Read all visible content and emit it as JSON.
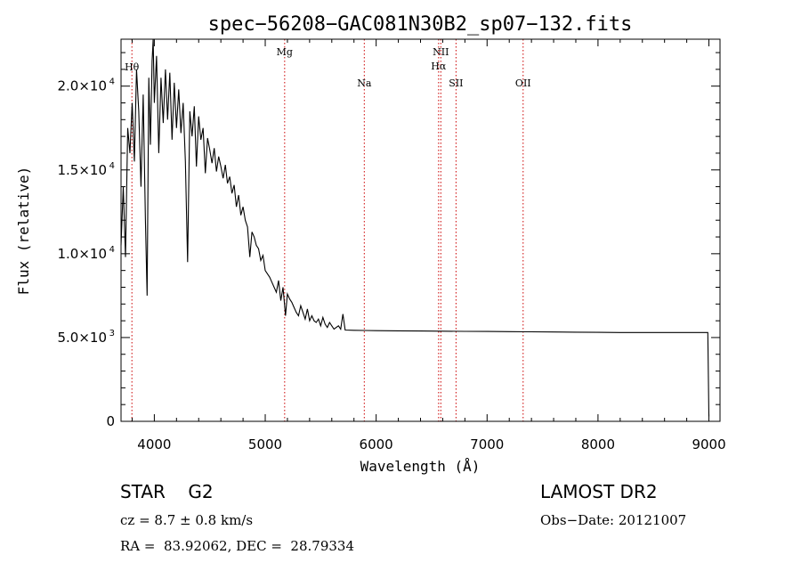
{
  "chart_data": {
    "type": "line",
    "title": "spec−56208−GAC081N30B2_sp07−132.fits",
    "xlabel": "Wavelength (Å)",
    "ylabel": "Flux (relative)",
    "xlim": [
      3700,
      9100
    ],
    "ylim": [
      0,
      22800
    ],
    "x_ticks": [
      4000,
      5000,
      6000,
      7000,
      8000,
      9000
    ],
    "x_tick_labels": [
      "4000",
      "5000",
      "6000",
      "7000",
      "8000",
      "9000"
    ],
    "y_ticks": [
      0,
      5000,
      10000,
      15000,
      20000
    ],
    "y_tick_labels": [
      "0",
      "5.0×10",
      "1.0×10",
      "1.5×10",
      "2.0×10"
    ],
    "y_tick_exponents": [
      "",
      "3",
      "4",
      "4",
      "4"
    ],
    "series": [
      {
        "x": [
          3700,
          3720,
          3740,
          3760,
          3780,
          3800,
          3820,
          3840,
          3860,
          3880,
          3900,
          3920,
          3935,
          3950,
          3965,
          3980,
          3990,
          4000,
          4020,
          4040,
          4060,
          4080,
          4100,
          4120,
          4140,
          4160,
          4180,
          4200,
          4220,
          4240,
          4260,
          4280,
          4300,
          4320,
          4340,
          4360,
          4380,
          4400,
          4420,
          4440,
          4460,
          4480,
          4500,
          4520,
          4540,
          4560,
          4580,
          4600,
          4620,
          4640,
          4660,
          4680,
          4700,
          4720,
          4740,
          4760,
          4780,
          4800,
          4820,
          4840,
          4861,
          4880,
          4900,
          4920,
          4940,
          4960,
          4980,
          5000,
          5020,
          5040,
          5060,
          5080,
          5100,
          5120,
          5140,
          5160,
          5183,
          5200,
          5220,
          5240,
          5260,
          5280,
          5300,
          5320,
          5340,
          5360,
          5380,
          5400,
          5420,
          5440,
          5460,
          5480,
          5500,
          5520,
          5540,
          5560,
          5580,
          5600,
          5620,
          5640,
          5660,
          5680,
          5700,
          5720,
          5800,
          5900,
          6000,
          6200,
          6400,
          6600,
          6800,
          7000,
          7200,
          7400,
          7600,
          7800,
          8000,
          8200,
          8400,
          8600,
          8800,
          8990,
          9000
        ],
        "y": [
          10500,
          14000,
          9800,
          17500,
          16000,
          19000,
          15500,
          21000,
          18500,
          14000,
          19500,
          12000,
          7500,
          20500,
          16500,
          21500,
          23500,
          19000,
          21800,
          16000,
          20500,
          17800,
          21000,
          18000,
          20800,
          16800,
          20200,
          17500,
          19800,
          17200,
          19000,
          15500,
          9500,
          18500,
          17000,
          18800,
          15200,
          18200,
          16800,
          17500,
          14800,
          16900,
          16200,
          15400,
          16300,
          14900,
          15800,
          15200,
          14500,
          15300,
          14200,
          14600,
          13600,
          14100,
          12800,
          13500,
          12300,
          12800,
          12000,
          11600,
          9800,
          11300,
          11000,
          10500,
          10300,
          9600,
          9900,
          9000,
          8800,
          8600,
          8300,
          8000,
          7700,
          8400,
          7200,
          8000,
          6300,
          7600,
          7300,
          7100,
          6800,
          6500,
          6300,
          6900,
          6500,
          6100,
          6700,
          6000,
          6300,
          6000,
          5900,
          6100,
          5700,
          6200,
          5800,
          5600,
          5900,
          5700,
          5500,
          5600,
          5700,
          5500,
          6400,
          5450,
          5430,
          5420,
          5410,
          5400,
          5390,
          5380,
          5370,
          5360,
          5350,
          5340,
          5330,
          5320,
          5310,
          5300,
          5300,
          5300,
          5300,
          5300,
          300
        ]
      }
    ],
    "lines": [
      {
        "label": "Hθ",
        "x": 3798
      },
      {
        "label": "Mg",
        "x": 5175
      },
      {
        "label": "Na",
        "x": 5893
      },
      {
        "label": "NII",
        "x": 6583
      },
      {
        "label": "Hα",
        "x": 6563
      },
      {
        "label": "SII",
        "x": 6720
      },
      {
        "label": "OII",
        "x": 7325
      }
    ],
    "grid": false,
    "legend": "none"
  },
  "info": {
    "class_line": "STAR    G2",
    "redshift_line": "cz = 8.7 ± 0.8 km/s",
    "coords_line": "RA =  83.92062, DEC =  28.79334",
    "survey": "LAMOST DR2",
    "obs_date_line": "Obs−Date: 20121007"
  },
  "colors": {
    "line_marker": "#cc0000",
    "spectrum": "#000000",
    "axes": "#000000"
  }
}
